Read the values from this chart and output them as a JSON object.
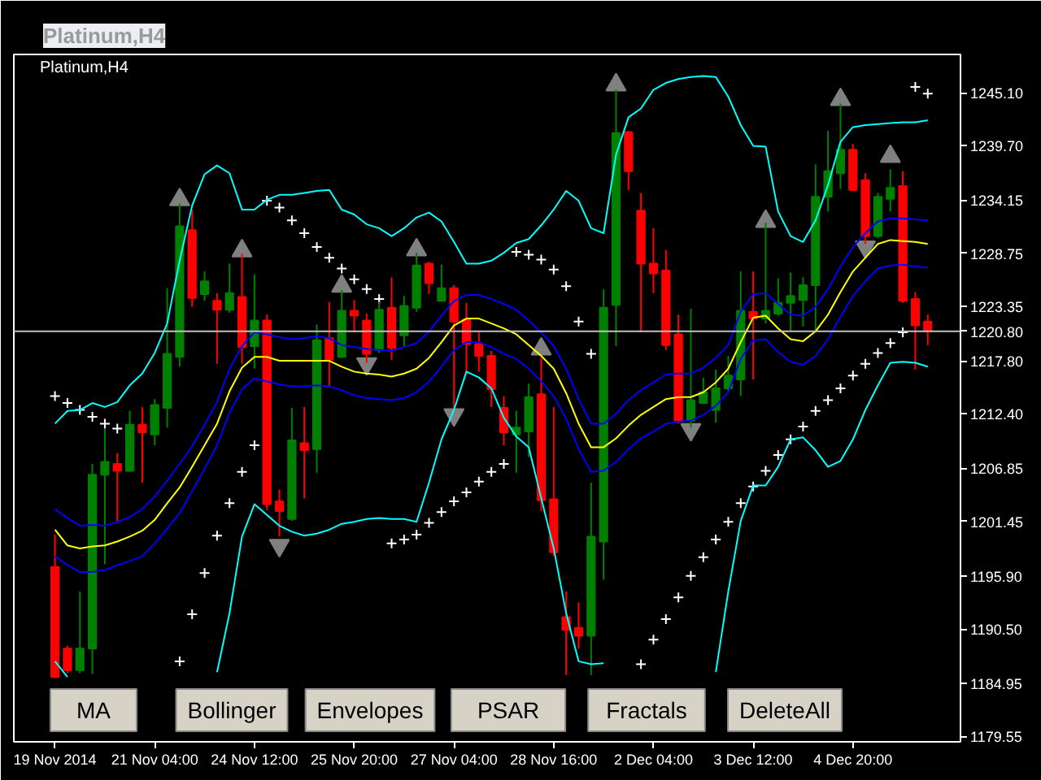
{
  "chart_data": {
    "type": "candlestick",
    "title": "Platinum,H4",
    "categories": [
      "19 Nov 2014",
      null,
      null,
      null,
      null,
      null,
      null,
      null,
      "21 Nov 04:00",
      null,
      null,
      null,
      null,
      null,
      null,
      null,
      "24 Nov 12:00",
      null,
      null,
      null,
      null,
      null,
      null,
      null,
      "25 Nov 20:00",
      null,
      null,
      null,
      null,
      null,
      null,
      null,
      "27 Nov 04:00",
      null,
      null,
      null,
      null,
      null,
      null,
      null,
      "28 Nov 16:00",
      null,
      null,
      null,
      null,
      null,
      null,
      null,
      "2 Dec 04:00",
      null,
      null,
      null,
      null,
      null,
      null,
      null,
      "3 Dec 12:00",
      null,
      null,
      null,
      null,
      null,
      null,
      null,
      "4 Dec 20:00",
      null,
      null,
      null,
      null,
      null,
      null
    ],
    "ohlc": [
      [
        1196.8,
        1200.1,
        1185.5,
        1185.6
      ],
      [
        1188.5,
        1188.8,
        1186.0,
        1186.3
      ],
      [
        1186.3,
        1194.3,
        1186.0,
        1188.5
      ],
      [
        1188.5,
        1207.3,
        1185.9,
        1206.2
      ],
      [
        1206.2,
        1210.9,
        1197.1,
        1207.5
      ],
      [
        1207.3,
        1208.4,
        1201.5,
        1206.6
      ],
      [
        1206.6,
        1212.7,
        1206.5,
        1211.3
      ],
      [
        1211.3,
        1213.1,
        1205.4,
        1210.5
      ],
      [
        1210.3,
        1213.9,
        1209.2,
        1213.3
      ],
      [
        1213.0,
        1225.2,
        1211.0,
        1218.5
      ],
      [
        1218.2,
        1233.8,
        1217.2,
        1231.5
      ],
      [
        1231.1,
        1233.2,
        1223.3,
        1224.2
      ],
      [
        1224.6,
        1226.9,
        1223.9,
        1225.9
      ],
      [
        1223.9,
        1224.7,
        1217.5,
        1223.0
      ],
      [
        1223.0,
        1227.7,
        1222.7,
        1224.7
      ],
      [
        1224.3,
        1228.7,
        1217.5,
        1219.2
      ],
      [
        1219.3,
        1226.6,
        1217.0,
        1221.9
      ],
      [
        1221.9,
        1222.5,
        1202.6,
        1203.2
      ],
      [
        1203.5,
        1204.7,
        1199.9,
        1202.5
      ],
      [
        1201.7,
        1213.0,
        1201.5,
        1209.7
      ],
      [
        1209.4,
        1213.1,
        1203.8,
        1208.7
      ],
      [
        1208.8,
        1221.5,
        1206.4,
        1219.9
      ],
      [
        1220.1,
        1223.8,
        1215.2,
        1217.9
      ],
      [
        1218.2,
        1225.0,
        1218.1,
        1222.9
      ],
      [
        1222.9,
        1224.0,
        1220.7,
        1222.4
      ],
      [
        1221.9,
        1222.6,
        1217.6,
        1218.5
      ],
      [
        1218.9,
        1223.8,
        1218.6,
        1223.0
      ],
      [
        1223.2,
        1226.3,
        1217.9,
        1219.1
      ],
      [
        1220.4,
        1224.4,
        1219.3,
        1223.4
      ],
      [
        1223.2,
        1228.8,
        1222.8,
        1227.5
      ],
      [
        1227.7,
        1227.9,
        1224.6,
        1225.7
      ],
      [
        1223.9,
        1227.6,
        1223.9,
        1225.2
      ],
      [
        1225.2,
        1225.5,
        1212.7,
        1221.8
      ],
      [
        1222.0,
        1223.7,
        1216.5,
        1219.5
      ],
      [
        1219.5,
        1220.7,
        1216.7,
        1218.3
      ],
      [
        1218.3,
        1218.8,
        1213.1,
        1214.9
      ],
      [
        1213.0,
        1214.2,
        1209.2,
        1210.5
      ],
      [
        1210.3,
        1212.7,
        1206.4,
        1211.0
      ],
      [
        1210.6,
        1215.5,
        1208.0,
        1214.1
      ],
      [
        1214.4,
        1218.1,
        1202.5,
        1203.6
      ],
      [
        1203.7,
        1213.1,
        1197.9,
        1198.3
      ],
      [
        1191.7,
        1194.3,
        1185.8,
        1190.4
      ],
      [
        1190.6,
        1193.2,
        1188.5,
        1189.8
      ],
      [
        1189.8,
        1205.4,
        1185.8,
        1199.9
      ],
      [
        1199.4,
        1225.1,
        1195.5,
        1223.2
      ],
      [
        1223.5,
        1245.4,
        1219.3,
        1241.0
      ],
      [
        1241.1,
        1241.2,
        1235.2,
        1237.1
      ],
      [
        1233.1,
        1234.9,
        1220.7,
        1227.7
      ],
      [
        1227.7,
        1231.3,
        1224.7,
        1226.7
      ],
      [
        1227.0,
        1229.1,
        1218.9,
        1219.4
      ],
      [
        1220.5,
        1222.5,
        1211.4,
        1211.7
      ],
      [
        1211.7,
        1223.1,
        1211.0,
        1213.8
      ],
      [
        1213.5,
        1216.1,
        1213.4,
        1214.6
      ],
      [
        1212.8,
        1216.9,
        1211.5,
        1215.0
      ],
      [
        1215.0,
        1218.3,
        1214.7,
        1216.3
      ],
      [
        1215.9,
        1226.9,
        1214.2,
        1222.9
      ],
      [
        1222.8,
        1226.9,
        1215.9,
        1222.1
      ],
      [
        1222.1,
        1231.9,
        1221.6,
        1222.9
      ],
      [
        1222.6,
        1226.2,
        1222.4,
        1223.7
      ],
      [
        1223.7,
        1226.8,
        1220.8,
        1224.4
      ],
      [
        1224.0,
        1226.3,
        1221.3,
        1225.5
      ],
      [
        1225.5,
        1237.8,
        1220.8,
        1234.5
      ],
      [
        1234.5,
        1241.2,
        1233.0,
        1237.1
      ],
      [
        1236.9,
        1244.0,
        1235.3,
        1239.3
      ],
      [
        1239.3,
        1239.9,
        1235.1,
        1235.2
      ],
      [
        1236.2,
        1236.9,
        1229.7,
        1230.5
      ],
      [
        1230.5,
        1234.9,
        1230.3,
        1234.5
      ],
      [
        1234.3,
        1237.3,
        1233.0,
        1235.4
      ],
      [
        1235.6,
        1237.1,
        1223.7,
        1223.9
      ],
      [
        1224.1,
        1224.8,
        1216.9,
        1221.4
      ],
      [
        1221.8,
        1222.5,
        1219.4,
        1220.8
      ]
    ],
    "colors": [
      "#ff0000",
      "#ff0000",
      "#008000",
      "#008000",
      "#008000",
      "#ff0000",
      "#008000",
      "#ff0000",
      "#008000",
      "#008000",
      "#008000",
      "#ff0000",
      "#008000",
      "#ff0000",
      "#008000",
      "#ff0000",
      "#008000",
      "#ff0000",
      "#ff0000",
      "#008000",
      "#ff0000",
      "#008000",
      "#ff0000",
      "#008000",
      "#ff0000",
      "#ff0000",
      "#008000",
      "#ff0000",
      "#008000",
      "#008000",
      "#ff0000",
      "#008000",
      "#ff0000",
      "#ff0000",
      "#ff0000",
      "#ff0000",
      "#ff0000",
      "#008000",
      "#008000",
      "#ff0000",
      "#ff0000",
      "#ff0000",
      "#ff0000",
      "#008000",
      "#008000",
      "#008000",
      "#ff0000",
      "#ff0000",
      "#ff0000",
      "#ff0000",
      "#ff0000",
      "#008000",
      "#008000",
      "#008000",
      "#008000",
      "#008000",
      "#ff0000",
      "#008000",
      "#008000",
      "#008000",
      "#008000",
      "#008000",
      "#008000",
      "#008000",
      "#ff0000",
      "#ff0000",
      "#008000",
      "#008000",
      "#ff0000",
      "#ff0000",
      "#ff0000"
    ],
    "series": [
      {
        "type": "line",
        "color": "#ffff00",
        "values": [
          1200.6,
          1199.0,
          1198.7,
          1198.9,
          1199.0,
          1199.4,
          1199.9,
          1200.5,
          1201.6,
          1203.3,
          1204.9,
          1207.0,
          1209.2,
          1211.4,
          1214.7,
          1217.1,
          1218.2,
          1218.2,
          1217.8,
          1217.8,
          1217.8,
          1217.8,
          1217.8,
          1217.2,
          1216.7,
          1216.5,
          1216.4,
          1216.2,
          1216.5,
          1217.0,
          1218.1,
          1219.7,
          1221.4,
          1222.1,
          1222.1,
          1221.6,
          1221.1,
          1220.5,
          1219.4,
          1218.3,
          1217.0,
          1214.5,
          1211.4,
          1209.0,
          1209.0,
          1209.9,
          1211.2,
          1212.3,
          1213.1,
          1213.9,
          1214.1,
          1214.1,
          1214.6,
          1215.6,
          1217.0,
          1219.7,
          1222.2,
          1222.4,
          1221.1,
          1220.0,
          1219.8,
          1220.8,
          1222.5,
          1224.8,
          1226.9,
          1228.3,
          1229.7,
          1230.1,
          1230.0,
          1229.9,
          1229.7
        ]
      },
      {
        "type": "line",
        "color": "#0000ff",
        "values": [
          1202.7,
          1201.8,
          1201.0,
          1201.1,
          1201.0,
          1201.4,
          1201.9,
          1202.7,
          1204.0,
          1205.6,
          1207.3,
          1209.1,
          1211.3,
          1213.6,
          1217.0,
          1219.3,
          1220.7,
          1220.5,
          1220.2,
          1220.0,
          1220.1,
          1220.3,
          1220.1,
          1219.4,
          1219.2,
          1219.0,
          1218.9,
          1218.8,
          1219.2,
          1219.6,
          1220.8,
          1222.4,
          1223.9,
          1224.5,
          1224.5,
          1224.1,
          1223.6,
          1223.0,
          1221.9,
          1220.7,
          1219.3,
          1217.0,
          1213.9,
          1211.4,
          1211.4,
          1212.4,
          1213.8,
          1214.8,
          1215.6,
          1216.4,
          1216.5,
          1216.5,
          1217.1,
          1218.1,
          1219.4,
          1222.8,
          1224.6,
          1224.7,
          1223.6,
          1222.5,
          1222.4,
          1223.3,
          1225.1,
          1227.4,
          1229.4,
          1230.8,
          1232.0,
          1232.3,
          1232.3,
          1232.2,
          1232.1
        ]
      },
      {
        "type": "line",
        "color": "#0000ff",
        "values": [
          1197.9,
          1197.0,
          1196.3,
          1196.3,
          1196.5,
          1197.0,
          1197.4,
          1197.9,
          1199.2,
          1200.7,
          1202.3,
          1204.5,
          1206.8,
          1209.2,
          1212.5,
          1214.9,
          1216.0,
          1215.7,
          1215.4,
          1215.2,
          1215.2,
          1215.3,
          1215.2,
          1214.8,
          1214.3,
          1214.0,
          1213.9,
          1213.8,
          1214.0,
          1214.6,
          1215.7,
          1217.2,
          1218.9,
          1219.7,
          1219.7,
          1219.2,
          1218.5,
          1218.0,
          1217.0,
          1215.7,
          1214.2,
          1211.9,
          1208.8,
          1206.5,
          1206.6,
          1207.5,
          1208.8,
          1209.9,
          1210.6,
          1211.4,
          1211.6,
          1211.7,
          1212.3,
          1213.2,
          1214.6,
          1218.0,
          1219.9,
          1220.0,
          1218.7,
          1217.7,
          1217.4,
          1218.3,
          1220.0,
          1222.3,
          1224.4,
          1225.9,
          1227.2,
          1227.5,
          1227.6,
          1227.4,
          1227.3
        ]
      },
      {
        "type": "line",
        "color": "#00ffff",
        "values": [
          1211.4,
          1212.7,
          1212.8,
          1213.5,
          1213.1,
          1213.6,
          1215.3,
          1216.5,
          1218.6,
          1221.6,
          1228.0,
          1233.6,
          1236.8,
          1237.7,
          1236.9,
          1233.2,
          1233.2,
          1234.2,
          1234.7,
          1234.7,
          1234.9,
          1235.1,
          1235.2,
          1233.2,
          1232.7,
          1231.7,
          1231.3,
          1230.5,
          1231.3,
          1232.4,
          1232.9,
          1232.0,
          1229.9,
          1227.7,
          1227.7,
          1228.0,
          1228.8,
          1229.8,
          1230.2,
          1231.6,
          1233.2,
          1235.1,
          1234.1,
          1231.3,
          1230.8,
          1238.8,
          1242.6,
          1243.5,
          1245.4,
          1246.1,
          1246.5,
          1246.7,
          1246.8,
          1246.7,
          1244.7,
          1241.8,
          1239.7,
          1239.6,
          1233.0,
          1230.5,
          1229.9,
          1232.1,
          1235.7,
          1240.1,
          1241.6,
          1241.8,
          1241.9,
          1242.0,
          1242.1,
          1242.1,
          1242.3
        ]
      },
      {
        "type": "line",
        "color": "#00ffff",
        "values": [
          1187.2,
          1185.6,
          null,
          null,
          null,
          null,
          null,
          null,
          null,
          null,
          null,
          null,
          null,
          1186.1,
          1192.1,
          1199.9,
          1203.2,
          1202.1,
          1201.0,
          1200.4,
          1200.0,
          1200.2,
          1200.6,
          1201.2,
          1201.4,
          1201.7,
          1201.8,
          1201.7,
          1201.7,
          1201.4,
          1205.4,
          1209.8,
          1212.8,
          1216.7,
          1216.1,
          1215.0,
          1212.0,
          1210.1,
          1209.0,
          1203.8,
          1198.7,
          1192.1,
          1187.2,
          1186.9,
          1187.0,
          null,
          null,
          null,
          null,
          null,
          null,
          null,
          null,
          1186.1,
          1194.3,
          1201.5,
          1205.1,
          1205.1,
          1207.0,
          1209.8,
          1210.0,
          1208.7,
          1207.0,
          1207.6,
          1209.8,
          1212.8,
          1215.3,
          1217.6,
          1217.7,
          1217.6,
          1217.2
        ]
      },
      {
        "type": "scatter",
        "marker": "cross",
        "color": "#ffffff",
        "values": [
          1214.2,
          1213.5,
          1212.8,
          1212.1,
          1211.4,
          1210.9,
          null,
          null,
          null,
          null,
          1187.2,
          1192.0,
          1196.2,
          1200.0,
          1203.3,
          1206.5,
          1209.2,
          1234.1,
          1233.4,
          1232.1,
          1230.8,
          1229.4,
          1228.3,
          1227.2,
          1226.1,
          1225.1,
          1224.1,
          1199.2,
          1199.6,
          1200.1,
          1201.3,
          1202.4,
          1203.5,
          1204.4,
          1205.5,
          1206.5,
          1207.3,
          1228.9,
          1228.6,
          1228.1,
          1227.1,
          1225.4,
          1221.8,
          1218.5,
          null,
          null,
          null,
          1186.9,
          1189.4,
          1191.5,
          1193.7,
          1195.9,
          1197.8,
          1199.6,
          1201.4,
          1203.3,
          1205.0,
          1206.6,
          1208.2,
          1209.8,
          1211.1,
          1212.7,
          1213.8,
          1215.0,
          1216.3,
          1217.5,
          1218.6,
          1219.6,
          1220.7,
          1245.7,
          1245.0
        ]
      },
      {
        "type": "scatter",
        "marker": "triangle",
        "color": "#808080",
        "values": [
          null,
          null,
          null,
          null,
          null,
          null,
          null,
          null,
          null,
          null,
          1234.2,
          null,
          null,
          null,
          null,
          1229.0,
          null,
          null,
          null,
          null,
          null,
          null,
          null,
          1225.4,
          null,
          null,
          null,
          null,
          null,
          1229.1,
          null,
          null,
          null,
          null,
          null,
          null,
          null,
          null,
          null,
          1219.0,
          null,
          null,
          null,
          null,
          null,
          1245.9,
          null,
          null,
          null,
          null,
          null,
          null,
          null,
          null,
          null,
          null,
          null,
          1232.0,
          null,
          null,
          null,
          null,
          null,
          1244.4,
          null,
          null,
          null,
          1238.6,
          null,
          null,
          null
        ]
      },
      {
        "type": "scatter",
        "marker": "triangle_down",
        "color": "#808080",
        "values": [
          null,
          null,
          null,
          null,
          null,
          null,
          null,
          null,
          null,
          null,
          null,
          null,
          null,
          null,
          null,
          null,
          null,
          null,
          1199.0,
          null,
          null,
          null,
          null,
          null,
          null,
          1217.5,
          null,
          null,
          null,
          null,
          null,
          null,
          1212.3,
          null,
          null,
          null,
          null,
          null,
          null,
          null,
          null,
          null,
          null,
          null,
          null,
          null,
          null,
          null,
          null,
          null,
          null,
          1210.8,
          null,
          null,
          null,
          null,
          null,
          null,
          null,
          null,
          null,
          null,
          null,
          null,
          null,
          1229.4,
          null,
          null,
          null,
          null,
          null
        ]
      }
    ],
    "ylim": [
      1179.0,
      1249.0
    ],
    "yticks": [
      {
        "value": 1245.1,
        "label": "1245.10"
      },
      {
        "value": 1239.7,
        "label": "1239.70"
      },
      1234.15,
      1228.75,
      1223.35,
      {
        "value": 1217.8,
        "label": "1217.80"
      },
      {
        "value": 1212.4,
        "label": "1212.40"
      },
      1206.85,
      1201.45,
      {
        "value": 1195.9,
        "label": "1195.90"
      },
      {
        "value": 1190.5,
        "label": "1190.50"
      },
      1184.95,
      1179.55
    ],
    "ref_lines": [
      {
        "axis": "y",
        "value": 1220.8,
        "label": "1220.80",
        "color": "#c0c0c0"
      }
    ],
    "annotations": [
      "Platinum,H4",
      "MA",
      "Bollinger",
      "Envelopes",
      "PSAR",
      "Fractals",
      "DeleteAll"
    ]
  }
}
